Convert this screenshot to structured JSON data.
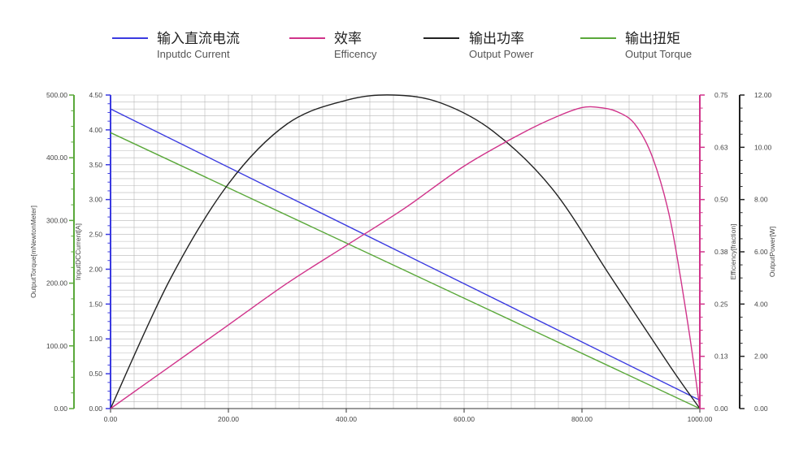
{
  "legend": [
    {
      "cn": "输入直流电流",
      "en": "Inputdc Current",
      "color": "#3a3ae0"
    },
    {
      "cn": "效率",
      "en": "Efficency",
      "color": "#d0338a"
    },
    {
      "cn": "输出功率",
      "en": "Output Power",
      "color": "#222222"
    },
    {
      "cn": "输出扭矩",
      "en": "Output Torque",
      "color": "#5aa83a"
    }
  ],
  "chart_data": {
    "type": "line",
    "x_axis": {
      "range": [
        0,
        1000
      ],
      "ticks": [
        "0.00",
        "200.00",
        "400.00",
        "600.00",
        "800.00",
        "1000.00"
      ]
    },
    "y_axes": {
      "torque": {
        "title": "OutputTorque[mNewtonMeter]",
        "range": [
          0,
          500
        ],
        "ticks": [
          "0.00",
          "100.00",
          "200.00",
          "300.00",
          "400.00",
          "500.00"
        ],
        "color": "#5aa83a"
      },
      "current": {
        "title": "InputDCCurrent[A]",
        "range": [
          0,
          4.5
        ],
        "ticks": [
          "0.00",
          "0.50",
          "1.00",
          "1.50",
          "2.00",
          "2.50",
          "3.00",
          "3.50",
          "4.00",
          "4.50"
        ],
        "color": "#3a3ae0"
      },
      "efficiency": {
        "title": "Efficiency[fraction]",
        "range": [
          0,
          0.75
        ],
        "ticks": [
          "0.00",
          "0.13",
          "0.25",
          "0.38",
          "0.50",
          "0.63",
          "0.75"
        ],
        "color": "#d0338a"
      },
      "power": {
        "title": "OutputPower[W]",
        "range": [
          0,
          12
        ],
        "ticks": [
          "0.00",
          "2.00",
          "4.00",
          "6.00",
          "8.00",
          "10.00",
          "12.00"
        ],
        "color": "#222222"
      }
    },
    "series": [
      {
        "key": "current",
        "axis": "current",
        "color": "#3a3ae0",
        "x": [
          0,
          1000
        ],
        "y": [
          4.3,
          0.12
        ]
      },
      {
        "key": "torque",
        "axis": "torque",
        "color": "#5aa83a",
        "x": [
          0,
          1000
        ],
        "y": [
          440,
          0
        ]
      },
      {
        "key": "power",
        "axis": "power",
        "color": "#222222",
        "x": [
          0,
          100,
          200,
          300,
          400,
          480,
          560,
          650,
          750,
          850,
          950,
          1000
        ],
        "y": [
          0,
          4.9,
          8.6,
          10.9,
          11.8,
          12.0,
          11.7,
          10.6,
          8.4,
          5.0,
          1.6,
          0
        ]
      },
      {
        "key": "efficiency",
        "axis": "efficiency",
        "color": "#d0338a",
        "x": [
          0,
          100,
          200,
          300,
          400,
          500,
          600,
          700,
          760,
          800,
          830,
          860,
          890,
          920,
          950,
          980,
          1000
        ],
        "y": [
          0,
          0.1,
          0.2,
          0.3,
          0.39,
          0.48,
          0.58,
          0.66,
          0.7,
          0.72,
          0.72,
          0.71,
          0.68,
          0.6,
          0.45,
          0.2,
          0
        ]
      }
    ],
    "grid": true,
    "legend_position": "top"
  }
}
